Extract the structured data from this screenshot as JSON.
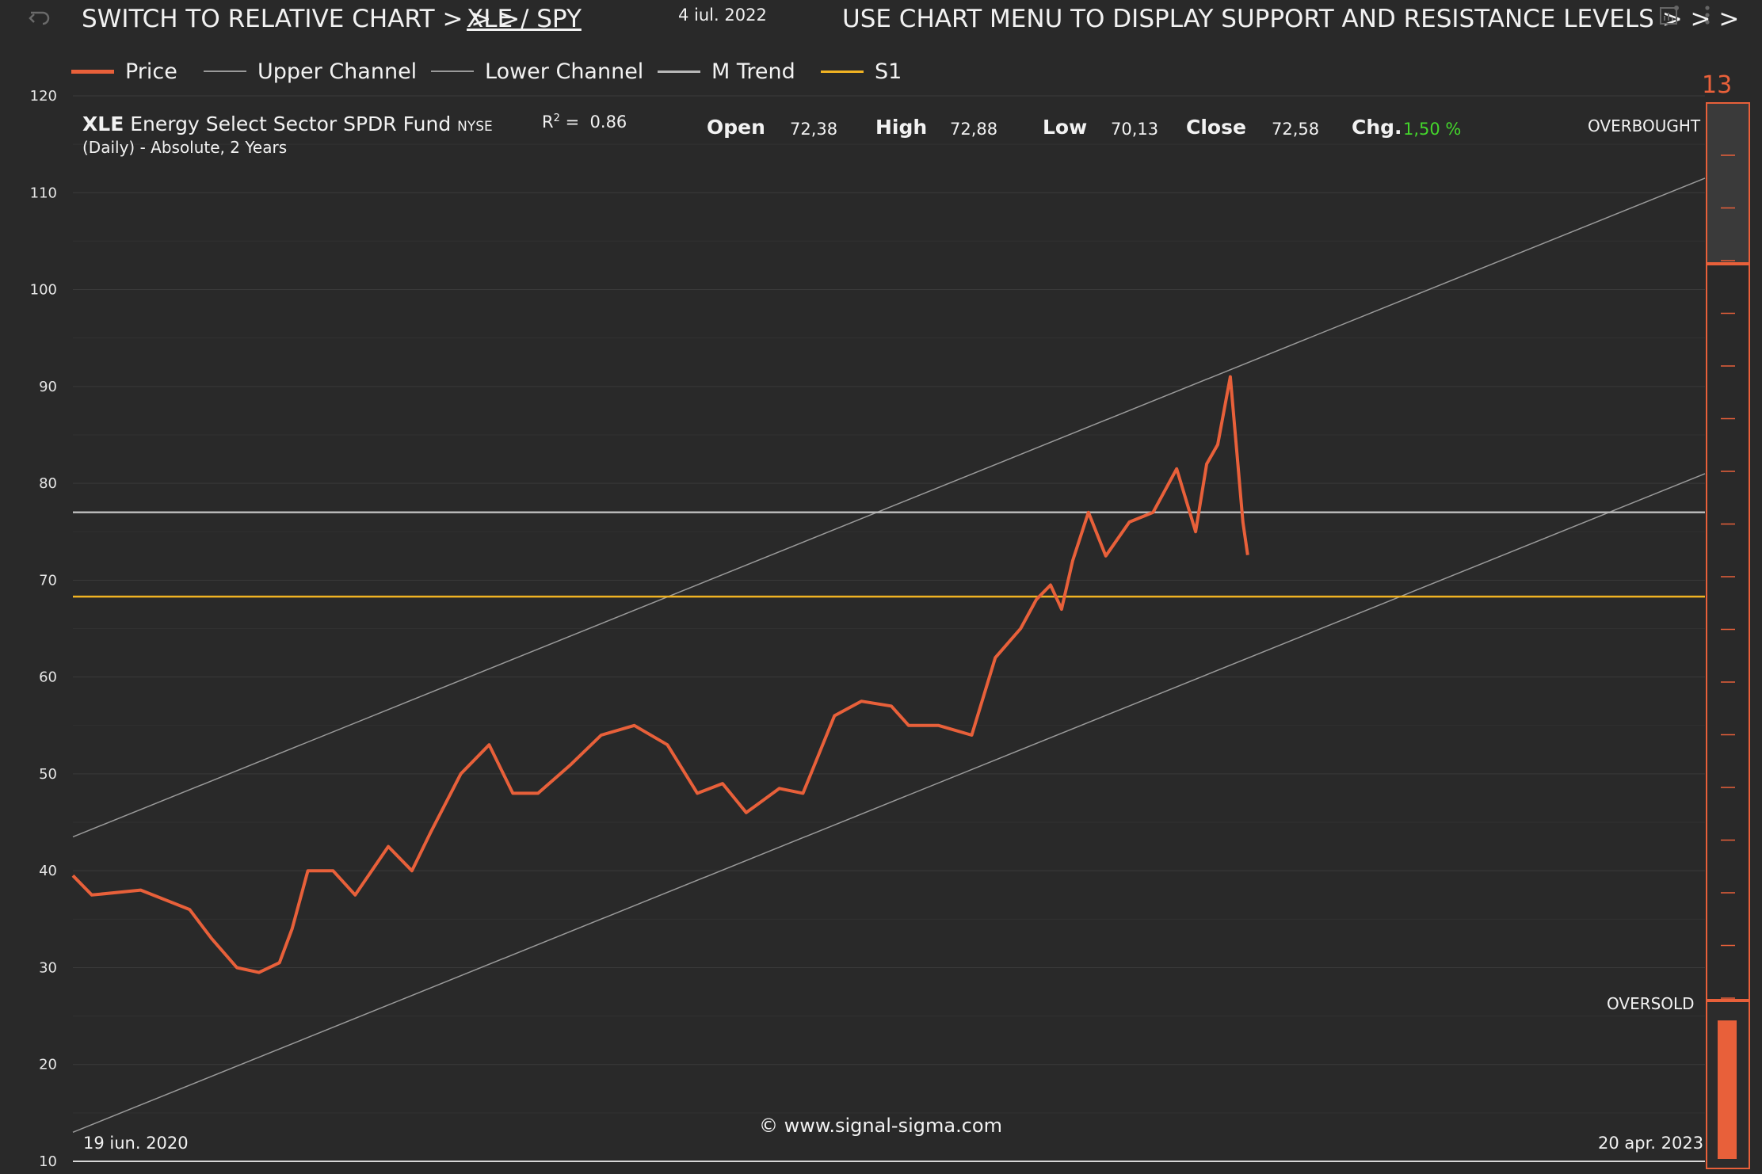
{
  "header": {
    "switch_label": "SWITCH TO RELATIVE CHART > > >",
    "pair_link": "XLE / SPY",
    "date": "4 iul. 2022",
    "menu_hint": "USE CHART MENU TO DISPLAY SUPPORT AND RESISTANCE LEVELS > > >"
  },
  "legend": [
    {
      "label": "Price",
      "color": "#e8603a"
    },
    {
      "label": "Upper Channel",
      "color": "#9a9a9a"
    },
    {
      "label": "Lower Channel",
      "color": "#9a9a9a"
    },
    {
      "label": "M Trend",
      "color": "#b8b8b8"
    },
    {
      "label": "S1",
      "color": "#f0b323"
    }
  ],
  "info": {
    "ticker": "XLE",
    "name": "Energy Select Sector SPDR Fund",
    "exchange": "NYSE",
    "subtitle": "(Daily) - Absolute, 2 Years",
    "r2_label": "R",
    "r2_sup": "2",
    "r2_eq": "=",
    "r2_value": "0.86",
    "open_label": "Open",
    "open_value": "72,38",
    "high_label": "High",
    "high_value": "72,88",
    "low_label": "Low",
    "low_value": "70,13",
    "close_label": "Close",
    "close_value": "72,58",
    "chg_label": "Chg.",
    "chg_value": "1,50 %",
    "chg_color": "#44d62c"
  },
  "gauge": {
    "value": "13",
    "overbought_label": "OVERBOUGHT",
    "oversold_label": "OVERSOLD",
    "color": "#e8603a",
    "fill_fraction": 0.13
  },
  "footer": {
    "copyright": "© www.signal-sigma.com",
    "start_date": "19 iun. 2020",
    "end_date": "20 apr. 2023"
  },
  "icons": [
    "undo-icon",
    "chart-settings-icon",
    "more-vert-icon"
  ],
  "chart_data": {
    "type": "line",
    "ylim": [
      10,
      120
    ],
    "yticks": [
      10,
      20,
      30,
      40,
      50,
      60,
      70,
      80,
      90,
      100,
      110,
      120
    ],
    "x_range": [
      "2020-06-19",
      "2023-04-20"
    ],
    "grid": true,
    "legend_placement": "top-left",
    "series": [
      {
        "name": "Price",
        "color": "#e8603a",
        "x": [
          "2020-06-19",
          "2020-07-01",
          "2020-08-01",
          "2020-09-01",
          "2020-09-15",
          "2020-10-01",
          "2020-10-15",
          "2020-10-28",
          "2020-11-05",
          "2020-11-15",
          "2020-12-01",
          "2020-12-15",
          "2021-01-05",
          "2021-01-20",
          "2021-02-01",
          "2021-02-20",
          "2021-03-10",
          "2021-03-25",
          "2021-04-10",
          "2021-05-01",
          "2021-05-20",
          "2021-06-10",
          "2021-07-01",
          "2021-07-20",
          "2021-08-05",
          "2021-08-20",
          "2021-09-10",
          "2021-09-25",
          "2021-10-15",
          "2021-11-01",
          "2021-11-20",
          "2021-12-01",
          "2021-12-20",
          "2022-01-10",
          "2022-01-25",
          "2022-02-10",
          "2022-02-20",
          "2022-03-01",
          "2022-03-08",
          "2022-03-15",
          "2022-03-25",
          "2022-04-05",
          "2022-04-20",
          "2022-05-05",
          "2022-05-20",
          "2022-06-01",
          "2022-06-08",
          "2022-06-15",
          "2022-06-23",
          "2022-07-01",
          "2022-07-04"
        ],
        "values": [
          39.5,
          37.5,
          38,
          36,
          33,
          30,
          29.5,
          30.5,
          34,
          40,
          40,
          37.5,
          42.5,
          40,
          44,
          50,
          53,
          48,
          48,
          51,
          54,
          55,
          53,
          48,
          49,
          46,
          48.5,
          48,
          56,
          57.5,
          57,
          55,
          55,
          54,
          62,
          65,
          68,
          69.5,
          67,
          72,
          77,
          72.5,
          76,
          77,
          81.5,
          75,
          82,
          84,
          91,
          76,
          72.6
        ]
      },
      {
        "name": "Upper Channel",
        "color": "#9a9a9a",
        "x": [
          "2020-06-19",
          "2023-04-20"
        ],
        "values": [
          43.5,
          111.5
        ]
      },
      {
        "name": "Lower Channel",
        "color": "#9a9a9a",
        "x": [
          "2020-06-19",
          "2023-04-20"
        ],
        "values": [
          13,
          81
        ]
      },
      {
        "name": "M Trend",
        "color": "#b8b8b8",
        "x": [
          "2020-06-19",
          "2023-04-20"
        ],
        "values": [
          77,
          77
        ]
      },
      {
        "name": "S1",
        "color": "#f0b323",
        "x": [
          "2020-06-19",
          "2023-04-20"
        ],
        "values": [
          68.3,
          68.3
        ]
      }
    ]
  }
}
